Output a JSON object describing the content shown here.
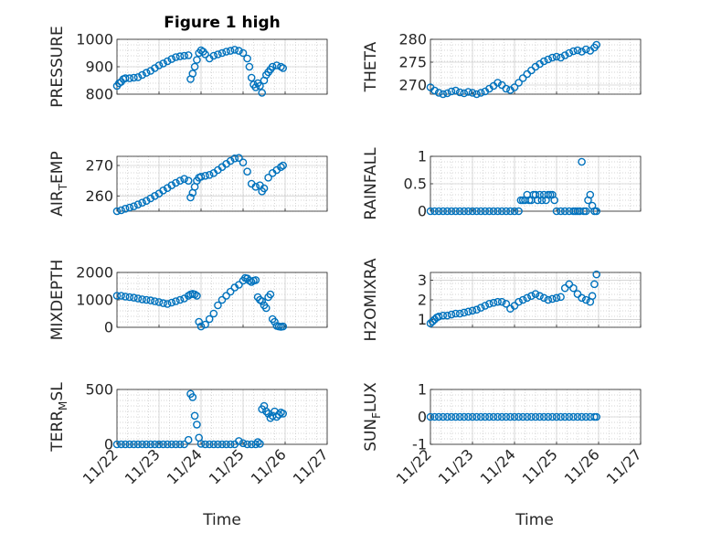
{
  "figure": {
    "title": "Figure 1 high",
    "xlabel": "Time",
    "marker_color": "#0072BD",
    "grid_color": "#d0d0d0",
    "axis_color": "#262626"
  },
  "chart_data": [
    {
      "type": "scatter",
      "id": "pressure",
      "title": "Figure 1 high",
      "ylabel": "PRESSURE",
      "xlim": [
        0,
        5
      ],
      "ylim": [
        800,
        1000
      ],
      "yticks": [
        800,
        900,
        1000
      ],
      "xticks": [],
      "xtick_labels": [],
      "x": [
        0.0,
        0.05,
        0.1,
        0.15,
        0.2,
        0.3,
        0.4,
        0.5,
        0.6,
        0.7,
        0.8,
        0.9,
        1.0,
        1.1,
        1.2,
        1.3,
        1.4,
        1.5,
        1.6,
        1.7,
        1.75,
        1.8,
        1.85,
        1.9,
        1.95,
        2.0,
        2.05,
        2.1,
        2.2,
        2.3,
        2.4,
        2.5,
        2.6,
        2.7,
        2.8,
        2.9,
        3.0,
        3.1,
        3.15,
        3.2,
        3.25,
        3.3,
        3.35,
        3.4,
        3.45,
        3.5,
        3.55,
        3.6,
        3.65,
        3.7,
        3.8,
        3.9,
        3.95
      ],
      "y": [
        830,
        840,
        845,
        855,
        858,
        858,
        860,
        862,
        870,
        878,
        885,
        895,
        905,
        912,
        920,
        928,
        935,
        938,
        940,
        942,
        855,
        875,
        900,
        925,
        950,
        960,
        955,
        945,
        930,
        940,
        945,
        950,
        955,
        958,
        962,
        958,
        950,
        930,
        900,
        860,
        835,
        825,
        840,
        830,
        805,
        850,
        870,
        880,
        890,
        900,
        905,
        900,
        895
      ]
    },
    {
      "type": "scatter",
      "id": "theta",
      "ylabel": "THETA",
      "xlim": [
        0,
        5
      ],
      "ylim": [
        268,
        280
      ],
      "yticks": [
        270,
        275,
        280
      ],
      "xticks": [],
      "xtick_labels": [],
      "x": [
        0.0,
        0.1,
        0.2,
        0.3,
        0.4,
        0.5,
        0.6,
        0.7,
        0.8,
        0.9,
        1.0,
        1.1,
        1.2,
        1.3,
        1.4,
        1.5,
        1.6,
        1.7,
        1.8,
        1.9,
        2.0,
        2.1,
        2.2,
        2.3,
        2.4,
        2.5,
        2.6,
        2.7,
        2.8,
        2.9,
        3.0,
        3.1,
        3.2,
        3.3,
        3.4,
        3.5,
        3.6,
        3.7,
        3.8,
        3.9,
        3.95
      ],
      "y": [
        269.5,
        268.8,
        268.3,
        268.0,
        268.2,
        268.6,
        268.8,
        268.4,
        268.2,
        268.5,
        268.3,
        268.0,
        268.3,
        268.6,
        269.2,
        269.8,
        270.5,
        270.0,
        269.2,
        268.9,
        269.5,
        270.5,
        271.5,
        272.4,
        273.2,
        274.0,
        274.6,
        275.2,
        275.6,
        276.0,
        276.2,
        276.0,
        276.5,
        277.0,
        277.4,
        277.6,
        277.3,
        277.8,
        277.5,
        278.2,
        278.8
      ]
    },
    {
      "type": "scatter",
      "id": "air_temp",
      "ylabel": "AIR_TEMP",
      "ylabel_parts": [
        "AIR",
        "T",
        "EMP"
      ],
      "xlim": [
        0,
        5
      ],
      "ylim": [
        255,
        273
      ],
      "yticks": [
        260,
        270
      ],
      "xticks": [],
      "xtick_labels": [],
      "x": [
        0.0,
        0.1,
        0.2,
        0.3,
        0.4,
        0.5,
        0.6,
        0.7,
        0.8,
        0.9,
        1.0,
        1.1,
        1.2,
        1.3,
        1.4,
        1.5,
        1.6,
        1.7,
        1.75,
        1.8,
        1.85,
        1.9,
        1.95,
        2.0,
        2.1,
        2.2,
        2.3,
        2.4,
        2.5,
        2.6,
        2.7,
        2.8,
        2.9,
        3.0,
        3.1,
        3.2,
        3.3,
        3.4,
        3.45,
        3.5,
        3.6,
        3.7,
        3.8,
        3.9,
        3.95
      ],
      "y": [
        255.0,
        255.3,
        255.8,
        256.2,
        256.6,
        257.2,
        257.8,
        258.4,
        259.2,
        260.0,
        260.8,
        261.8,
        262.6,
        263.5,
        264.3,
        265.0,
        265.6,
        265.0,
        259.5,
        261.0,
        263.0,
        265.0,
        266.0,
        266.3,
        266.6,
        266.9,
        267.5,
        268.5,
        269.5,
        270.5,
        271.5,
        272.3,
        272.5,
        271.0,
        268.0,
        264.0,
        263.0,
        263.5,
        261.5,
        262.5,
        266.0,
        267.5,
        268.5,
        269.5,
        270.0
      ]
    },
    {
      "type": "scatter",
      "id": "rainfall",
      "ylabel": "RAINFALL",
      "xlim": [
        0,
        5
      ],
      "ylim": [
        0,
        1
      ],
      "yticks": [
        0,
        0.5,
        1
      ],
      "xticks": [],
      "xtick_labels": [],
      "x": [
        0.0,
        0.1,
        0.2,
        0.3,
        0.4,
        0.5,
        0.6,
        0.7,
        0.8,
        0.9,
        1.0,
        1.1,
        1.2,
        1.3,
        1.4,
        1.5,
        1.6,
        1.7,
        1.8,
        1.9,
        2.0,
        2.1,
        2.15,
        2.2,
        2.25,
        2.3,
        2.35,
        2.4,
        2.45,
        2.5,
        2.55,
        2.6,
        2.65,
        2.7,
        2.75,
        2.8,
        2.85,
        2.9,
        2.95,
        3.0,
        3.1,
        3.2,
        3.3,
        3.4,
        3.45,
        3.5,
        3.55,
        3.6,
        3.65,
        3.7,
        3.75,
        3.8,
        3.85,
        3.9,
        3.95
      ],
      "y": [
        0,
        0,
        0,
        0,
        0,
        0,
        0,
        0,
        0,
        0,
        0,
        0,
        0,
        0,
        0,
        0,
        0,
        0,
        0,
        0,
        0,
        0,
        0.2,
        0.2,
        0.2,
        0.3,
        0.2,
        0.2,
        0.3,
        0.3,
        0.2,
        0.3,
        0.2,
        0.3,
        0.2,
        0.3,
        0.3,
        0.3,
        0.2,
        0,
        0,
        0,
        0,
        0,
        0,
        0,
        0,
        0.9,
        0,
        0,
        0.2,
        0.3,
        0.1,
        0,
        0
      ]
    },
    {
      "type": "scatter",
      "id": "mixdepth",
      "ylabel": "MIXDEPTH",
      "xlim": [
        0,
        5
      ],
      "ylim": [
        0,
        2000
      ],
      "yticks": [
        0,
        1000,
        2000
      ],
      "xticks": [],
      "xtick_labels": [],
      "x": [
        0.0,
        0.1,
        0.2,
        0.3,
        0.4,
        0.5,
        0.6,
        0.7,
        0.8,
        0.9,
        1.0,
        1.1,
        1.2,
        1.3,
        1.4,
        1.5,
        1.6,
        1.7,
        1.75,
        1.8,
        1.85,
        1.9,
        1.95,
        2.0,
        2.1,
        2.2,
        2.3,
        2.4,
        2.5,
        2.6,
        2.7,
        2.8,
        2.9,
        3.0,
        3.05,
        3.1,
        3.15,
        3.2,
        3.25,
        3.3,
        3.35,
        3.4,
        3.45,
        3.5,
        3.55,
        3.6,
        3.65,
        3.7,
        3.75,
        3.8,
        3.85,
        3.9,
        3.95
      ],
      "y": [
        1150,
        1150,
        1120,
        1100,
        1080,
        1050,
        1020,
        1000,
        980,
        950,
        920,
        880,
        850,
        900,
        950,
        1000,
        1050,
        1150,
        1200,
        1220,
        1200,
        1150,
        200,
        30,
        100,
        300,
        500,
        800,
        1000,
        1150,
        1300,
        1450,
        1550,
        1700,
        1800,
        1780,
        1700,
        1650,
        1700,
        1720,
        1100,
        1000,
        950,
        800,
        700,
        1100,
        1200,
        300,
        200,
        50,
        30,
        20,
        30
      ]
    },
    {
      "type": "scatter",
      "id": "h2omixra",
      "ylabel": "H2OMIXRA",
      "xlim": [
        0,
        5
      ],
      "ylim": [
        0.6,
        3.4
      ],
      "yticks": [
        1,
        2,
        3
      ],
      "xticks": [],
      "xtick_labels": [],
      "x": [
        0.0,
        0.05,
        0.1,
        0.15,
        0.2,
        0.3,
        0.4,
        0.5,
        0.6,
        0.7,
        0.8,
        0.9,
        1.0,
        1.1,
        1.2,
        1.3,
        1.4,
        1.5,
        1.6,
        1.7,
        1.8,
        1.9,
        2.0,
        2.1,
        2.2,
        2.3,
        2.4,
        2.5,
        2.6,
        2.7,
        2.8,
        2.9,
        3.0,
        3.1,
        3.2,
        3.3,
        3.4,
        3.5,
        3.6,
        3.7,
        3.8,
        3.85,
        3.9,
        3.95
      ],
      "y": [
        0.8,
        0.9,
        1.0,
        1.1,
        1.15,
        1.2,
        1.2,
        1.25,
        1.3,
        1.3,
        1.35,
        1.4,
        1.45,
        1.5,
        1.6,
        1.7,
        1.8,
        1.85,
        1.9,
        1.9,
        1.8,
        1.55,
        1.7,
        1.9,
        2.0,
        2.1,
        2.2,
        2.3,
        2.2,
        2.1,
        2.0,
        2.05,
        2.1,
        2.15,
        2.6,
        2.8,
        2.6,
        2.3,
        2.1,
        2.0,
        1.9,
        2.2,
        2.8,
        3.3
      ]
    },
    {
      "type": "scatter",
      "id": "terr_msl",
      "ylabel": "TERR_MSL",
      "ylabel_parts": [
        "TERR",
        "M",
        "SL"
      ],
      "xlim": [
        0,
        5
      ],
      "ylim": [
        0,
        500
      ],
      "yticks": [
        0,
        500
      ],
      "xticks": [
        0,
        1,
        2,
        3,
        4,
        5
      ],
      "xtick_labels": [
        "11/22",
        "11/23",
        "11/24",
        "11/25",
        "11/26",
        "11/27"
      ],
      "xlabel": "Time",
      "x": [
        0.0,
        0.1,
        0.2,
        0.3,
        0.4,
        0.5,
        0.6,
        0.7,
        0.8,
        0.9,
        1.0,
        1.1,
        1.2,
        1.3,
        1.4,
        1.5,
        1.6,
        1.7,
        1.75,
        1.8,
        1.85,
        1.9,
        1.95,
        2.0,
        2.1,
        2.2,
        2.3,
        2.4,
        2.5,
        2.6,
        2.7,
        2.8,
        2.9,
        3.0,
        3.1,
        3.2,
        3.3,
        3.35,
        3.4,
        3.45,
        3.5,
        3.55,
        3.6,
        3.65,
        3.7,
        3.75,
        3.8,
        3.85,
        3.9,
        3.95
      ],
      "y": [
        0,
        0,
        0,
        0,
        0,
        0,
        0,
        0,
        0,
        0,
        0,
        0,
        0,
        0,
        0,
        0,
        0,
        40,
        460,
        430,
        260,
        180,
        60,
        5,
        0,
        0,
        0,
        0,
        0,
        0,
        0,
        0,
        30,
        10,
        0,
        0,
        0,
        20,
        5,
        320,
        350,
        300,
        280,
        240,
        260,
        300,
        250,
        270,
        290,
        280
      ]
    },
    {
      "type": "scatter",
      "id": "sun_flux",
      "ylabel": "SUN_FLUX",
      "ylabel_parts": [
        "SUN",
        "F",
        "LUX"
      ],
      "xlim": [
        0,
        5
      ],
      "ylim": [
        -1,
        1
      ],
      "yticks": [
        -1,
        0,
        1
      ],
      "xticks": [
        0,
        1,
        2,
        3,
        4,
        5
      ],
      "xtick_labels": [
        "11/22",
        "11/23",
        "11/24",
        "11/25",
        "11/26",
        "11/27"
      ],
      "xlabel": "Time",
      "x": [
        0.0,
        0.1,
        0.2,
        0.3,
        0.4,
        0.5,
        0.6,
        0.7,
        0.8,
        0.9,
        1.0,
        1.1,
        1.2,
        1.3,
        1.4,
        1.5,
        1.6,
        1.7,
        1.8,
        1.9,
        2.0,
        2.1,
        2.2,
        2.3,
        2.4,
        2.5,
        2.6,
        2.7,
        2.8,
        2.9,
        3.0,
        3.1,
        3.2,
        3.3,
        3.4,
        3.5,
        3.6,
        3.7,
        3.8,
        3.9,
        3.95
      ],
      "y": [
        0,
        0,
        0,
        0,
        0,
        0,
        0,
        0,
        0,
        0,
        0,
        0,
        0,
        0,
        0,
        0,
        0,
        0,
        0,
        0,
        0,
        0,
        0,
        0,
        0,
        0,
        0,
        0,
        0,
        0,
        0,
        0,
        0,
        0,
        0,
        0,
        0,
        0,
        0,
        0,
        0
      ]
    }
  ]
}
